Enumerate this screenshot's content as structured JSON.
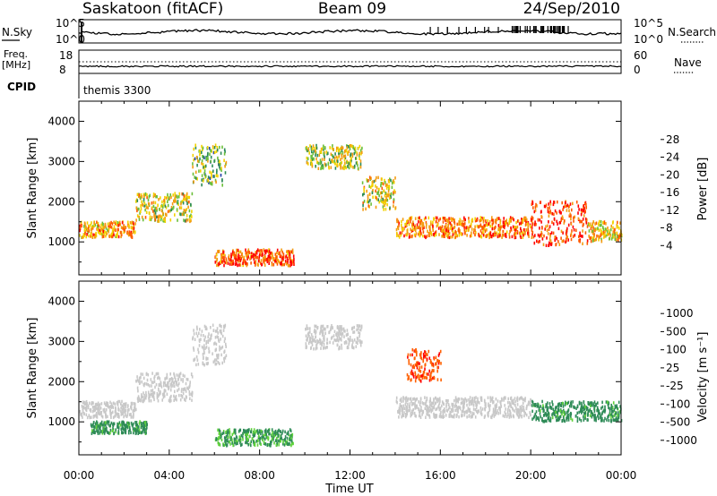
{
  "header": {
    "station": "Saskatoon (fitACF)",
    "beam": "Beam 09",
    "date": "24/Sep/2010"
  },
  "nsky_panel": {
    "left_label": "N.Sky",
    "left_ticks": [
      "10^5",
      "10^0"
    ],
    "right_ticks": [
      "10^5",
      "10^0"
    ],
    "right_label": "N.Search",
    "right_label_style": "dotted"
  },
  "freq_panel": {
    "left_label_line1": "Freq.",
    "left_label_line2": "[MHz]",
    "left_ticks": [
      "18",
      "8"
    ],
    "right_ticks": [
      "60",
      "0"
    ],
    "right_label": "Nave",
    "right_label_style": "dotted"
  },
  "cpid_panel": {
    "label": "CPID",
    "program": "themis 3300"
  },
  "chart_data": [
    {
      "type": "heatmap",
      "panel": "power",
      "ylabel": "Slant Range [km]",
      "xlabel": "",
      "yticks": [
        1000,
        2000,
        3000,
        4000
      ],
      "ylim": [
        180,
        4500
      ],
      "xlim": [
        0,
        24
      ],
      "x_tick_labels": [
        "00:00",
        "04:00",
        "08:00",
        "12:00",
        "16:00",
        "20:00",
        "00:00"
      ],
      "colorbar": {
        "label": "Power [dB]",
        "ticks": [
          "28",
          "24",
          "20",
          "16",
          "12",
          "8",
          "4"
        ],
        "colors": [
          "#0000ff",
          "#1f3fa8",
          "#2e8b57",
          "#6bbf3a",
          "#f2d200",
          "#f39c12",
          "#ff5a00",
          "#ff0000"
        ]
      },
      "echo_bands": [
        {
          "t0": 0.0,
          "t1": 2.5,
          "r0": 1100,
          "r1": 1500,
          "value": 22
        },
        {
          "t0": 2.5,
          "t1": 5.0,
          "r0": 1500,
          "r1": 2200,
          "value": 18
        },
        {
          "t0": 5.0,
          "t1": 6.5,
          "r0": 2400,
          "r1": 3400,
          "value": 14
        },
        {
          "t0": 6.0,
          "t1": 9.5,
          "r0": 400,
          "r1": 800,
          "value": 26
        },
        {
          "t0": 10.0,
          "t1": 12.5,
          "r0": 2800,
          "r1": 3400,
          "value": 16
        },
        {
          "t0": 12.5,
          "t1": 14.0,
          "r0": 1800,
          "r1": 2600,
          "value": 18
        },
        {
          "t0": 14.0,
          "t1": 20.0,
          "r0": 1100,
          "r1": 1600,
          "value": 24
        },
        {
          "t0": 20.0,
          "t1": 22.5,
          "r0": 900,
          "r1": 2000,
          "value": 28
        },
        {
          "t0": 22.5,
          "t1": 24.0,
          "r0": 1000,
          "r1": 1500,
          "value": 20
        }
      ]
    },
    {
      "type": "heatmap",
      "panel": "velocity",
      "ylabel": "Slant Range [km]",
      "xlabel": "Time UT",
      "yticks": [
        1000,
        2000,
        3000,
        4000
      ],
      "ylim": [
        180,
        4500
      ],
      "xlim": [
        0,
        24
      ],
      "x_tick_labels": [
        "00:00",
        "04:00",
        "08:00",
        "12:00",
        "16:00",
        "20:00",
        "00:00"
      ],
      "colorbar": {
        "label": "Velocity [m s⁻¹]",
        "ticks": [
          "1000",
          "500",
          "100",
          "25",
          "-25",
          "-100",
          "-500",
          "-1000"
        ],
        "colors": [
          "#ff0000",
          "#ff6000",
          "#ffa500",
          "#c8c8c8",
          "#c8c8c8",
          "#5fd23a",
          "#2e8b57",
          "#1f3fa8",
          "#0000cc"
        ]
      },
      "echo_bands": [
        {
          "t0": 0.0,
          "t1": 2.5,
          "r0": 1100,
          "r1": 1500,
          "value": 0
        },
        {
          "t0": 0.5,
          "t1": 3.0,
          "r0": 700,
          "r1": 1000,
          "value": 150
        },
        {
          "t0": 2.5,
          "t1": 5.0,
          "r0": 1500,
          "r1": 2200,
          "value": 0
        },
        {
          "t0": 5.0,
          "t1": 6.5,
          "r0": 2400,
          "r1": 3400,
          "value": 0
        },
        {
          "t0": 6.0,
          "t1": 9.5,
          "r0": 400,
          "r1": 800,
          "value": 120
        },
        {
          "t0": 10.0,
          "t1": 12.5,
          "r0": 2800,
          "r1": 3400,
          "value": 0
        },
        {
          "t0": 14.5,
          "t1": 16.0,
          "r0": 2000,
          "r1": 2800,
          "value": -400
        },
        {
          "t0": 14.0,
          "t1": 20.0,
          "r0": 1100,
          "r1": 1600,
          "value": 0
        },
        {
          "t0": 20.0,
          "t1": 24.0,
          "r0": 1000,
          "r1": 1500,
          "value": 200
        }
      ]
    }
  ]
}
